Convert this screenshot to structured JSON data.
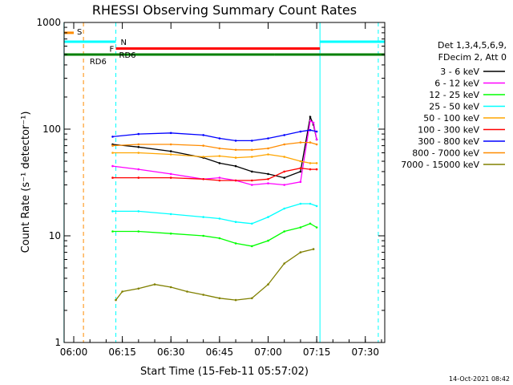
{
  "chart_data": {
    "type": "line",
    "title": "RHESSI Observing Summary Count Rates",
    "xlabel": "Start Time (15-Feb-11 05:57:02)",
    "ylabel": "Count Rate (s⁻¹ detector⁻¹)",
    "yscale": "log",
    "ylim": [
      1,
      1000
    ],
    "xlim": [
      "05:57:02",
      "07:36:00"
    ],
    "x_ticks": [
      "06:00",
      "06:15",
      "06:30",
      "06:45",
      "07:00",
      "07:15",
      "07:30"
    ],
    "y_ticks": [
      "1",
      "10",
      "100",
      "1000"
    ],
    "grid": false,
    "legend_position": "right",
    "legend_header": [
      "Det 1,3,4,5,6,9,",
      "FDecim 2, Att 0"
    ],
    "timestamp": "14-Oct-2021 08:42",
    "series": [
      {
        "name": "3 - 6 keV",
        "color": "#000000",
        "points": [
          [
            "06:12",
            72
          ],
          [
            "06:20",
            68
          ],
          [
            "06:30",
            62
          ],
          [
            "06:40",
            54
          ],
          [
            "06:45",
            48
          ],
          [
            "06:50",
            45
          ],
          [
            "06:55",
            40
          ],
          [
            "07:00",
            38
          ],
          [
            "07:05",
            35
          ],
          [
            "07:10",
            40
          ],
          [
            "07:13",
            130
          ],
          [
            "07:14",
            110
          ],
          [
            "07:15",
            80
          ]
        ]
      },
      {
        "name": "6 - 12 keV",
        "color": "#ff00ff",
        "points": [
          [
            "06:12",
            45
          ],
          [
            "06:20",
            42
          ],
          [
            "06:30",
            38
          ],
          [
            "06:40",
            34
          ],
          [
            "06:45",
            35
          ],
          [
            "06:50",
            33
          ],
          [
            "06:55",
            30
          ],
          [
            "07:00",
            31
          ],
          [
            "07:05",
            30
          ],
          [
            "07:10",
            32
          ],
          [
            "07:13",
            120
          ],
          [
            "07:14",
            115
          ],
          [
            "07:15",
            80
          ]
        ]
      },
      {
        "name": "12 - 25 keV",
        "color": "#00ff00",
        "points": [
          [
            "06:12",
            11
          ],
          [
            "06:20",
            11
          ],
          [
            "06:30",
            10.5
          ],
          [
            "06:40",
            10
          ],
          [
            "06:45",
            9.5
          ],
          [
            "06:50",
            8.5
          ],
          [
            "06:55",
            8
          ],
          [
            "07:00",
            9
          ],
          [
            "07:05",
            11
          ],
          [
            "07:10",
            12
          ],
          [
            "07:13",
            13
          ],
          [
            "07:15",
            12
          ]
        ]
      },
      {
        "name": "25 - 50 keV",
        "color": "#00ffff",
        "points": [
          [
            "06:12",
            17
          ],
          [
            "06:20",
            17
          ],
          [
            "06:30",
            16
          ],
          [
            "06:40",
            15
          ],
          [
            "06:45",
            14.5
          ],
          [
            "06:50",
            13.5
          ],
          [
            "06:55",
            13
          ],
          [
            "07:00",
            15
          ],
          [
            "07:05",
            18
          ],
          [
            "07:10",
            20
          ],
          [
            "07:13",
            20
          ],
          [
            "07:15",
            19
          ]
        ]
      },
      {
        "name": "50 - 100 keV",
        "color": "#ffa500",
        "points": [
          [
            "06:12",
            60
          ],
          [
            "06:20",
            60
          ],
          [
            "06:30",
            58
          ],
          [
            "06:40",
            55
          ],
          [
            "06:45",
            56
          ],
          [
            "06:50",
            54
          ],
          [
            "06:55",
            55
          ],
          [
            "07:00",
            58
          ],
          [
            "07:05",
            55
          ],
          [
            "07:10",
            50
          ],
          [
            "07:13",
            48
          ],
          [
            "07:15",
            48
          ]
        ]
      },
      {
        "name": "100 - 300 keV",
        "color": "#ff0000",
        "points": [
          [
            "06:12",
            35
          ],
          [
            "06:20",
            35
          ],
          [
            "06:30",
            35
          ],
          [
            "06:40",
            34
          ],
          [
            "06:45",
            33
          ],
          [
            "06:50",
            33
          ],
          [
            "06:55",
            33
          ],
          [
            "07:00",
            34
          ],
          [
            "07:05",
            40
          ],
          [
            "07:10",
            43
          ],
          [
            "07:13",
            42
          ],
          [
            "07:15",
            42
          ]
        ]
      },
      {
        "name": "300 - 800 keV",
        "color": "#0000ff",
        "points": [
          [
            "06:12",
            85
          ],
          [
            "06:20",
            90
          ],
          [
            "06:30",
            92
          ],
          [
            "06:40",
            88
          ],
          [
            "06:45",
            82
          ],
          [
            "06:50",
            78
          ],
          [
            "06:55",
            78
          ],
          [
            "07:00",
            82
          ],
          [
            "07:05",
            88
          ],
          [
            "07:10",
            95
          ],
          [
            "07:13",
            98
          ],
          [
            "07:15",
            95
          ]
        ]
      },
      {
        "name": "800 - 7000 keV",
        "color": "#ff8c00",
        "points": [
          [
            "06:12",
            70
          ],
          [
            "06:20",
            72
          ],
          [
            "06:30",
            72
          ],
          [
            "06:40",
            70
          ],
          [
            "06:45",
            66
          ],
          [
            "06:50",
            64
          ],
          [
            "06:55",
            64
          ],
          [
            "07:00",
            66
          ],
          [
            "07:05",
            72
          ],
          [
            "07:10",
            75
          ],
          [
            "07:13",
            75
          ],
          [
            "07:15",
            72
          ]
        ]
      },
      {
        "name": "7000 - 15000 keV",
        "color": "#808000",
        "points": [
          [
            "06:13",
            2.5
          ],
          [
            "06:15",
            3
          ],
          [
            "06:20",
            3.2
          ],
          [
            "06:25",
            3.5
          ],
          [
            "06:30",
            3.3
          ],
          [
            "06:35",
            3
          ],
          [
            "06:40",
            2.8
          ],
          [
            "06:45",
            2.6
          ],
          [
            "06:50",
            2.5
          ],
          [
            "06:55",
            2.6
          ],
          [
            "07:00",
            3.5
          ],
          [
            "07:05",
            5.5
          ],
          [
            "07:10",
            7
          ],
          [
            "07:14",
            7.5
          ]
        ]
      }
    ],
    "annotations": [
      {
        "text": "S",
        "color": "#ff8c00"
      },
      {
        "text": "N",
        "color": "#00ffff"
      },
      {
        "text": "F",
        "color": "#000000"
      },
      {
        "text": "RD6",
        "color": "#008000"
      },
      {
        "text": "RD6",
        "color": "#008000"
      }
    ],
    "state_bars": [
      {
        "label": "S",
        "color": "#ff8c00",
        "y": 800,
        "segments": [
          [
            "05:57",
            "06:00"
          ]
        ]
      },
      {
        "label": "N",
        "color": "#00ffff",
        "y": 660,
        "segments": [
          [
            "05:57",
            "06:13"
          ],
          [
            "07:16",
            "07:36"
          ]
        ]
      },
      {
        "label": "F",
        "color": "#ff0000",
        "y": 570,
        "segments": [
          [
            "06:13",
            "07:16"
          ]
        ]
      },
      {
        "label": "RD6",
        "color": "#008000",
        "y": 500,
        "segments": [
          [
            "05:57",
            "06:13"
          ],
          [
            "06:13",
            "07:02"
          ],
          [
            "07:02",
            "07:16"
          ],
          [
            "07:16",
            "07:36"
          ]
        ]
      }
    ],
    "vlines": [
      {
        "t": "05:57",
        "color": "#00ffff",
        "style": "solid"
      },
      {
        "t": "06:03",
        "color": "#ff8c00",
        "style": "dashed"
      },
      {
        "t": "06:13",
        "color": "#00ffff",
        "style": "dashed"
      },
      {
        "t": "07:16",
        "color": "#00ffff",
        "style": "solid"
      },
      {
        "t": "07:34",
        "color": "#00ffff",
        "style": "dashed"
      }
    ]
  }
}
